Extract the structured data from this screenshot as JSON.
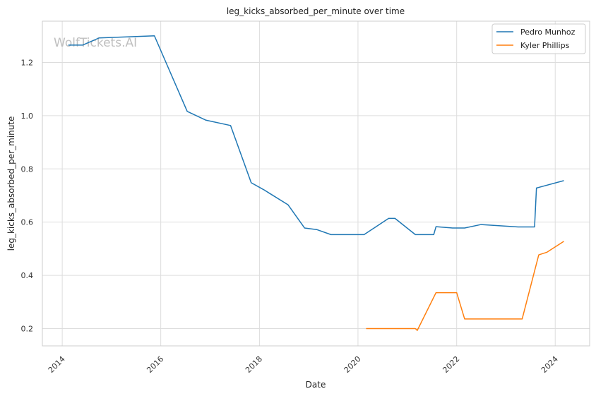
{
  "watermark": "WolfTickets.AI",
  "chart_data": {
    "type": "line",
    "title": "leg_kicks_absorbed_per_minute over time",
    "xlabel": "Date",
    "ylabel": "leg_kicks_absorbed_per_minute",
    "x_ticks": [
      "2014",
      "2016",
      "2018",
      "2020",
      "2022",
      "2024"
    ],
    "y_ticks": [
      "0.2",
      "0.4",
      "0.6",
      "0.8",
      "1.0",
      "1.2"
    ],
    "xlim": [
      "2013-08-07",
      "2024-09-12"
    ],
    "ylim": [
      0.135,
      1.355
    ],
    "grid": true,
    "legend_position": "top-right",
    "series": [
      {
        "name": "Pedro Munhoz",
        "color": "#1f77b4",
        "points": [
          [
            "2014-02-15",
            1.265
          ],
          [
            "2014-06-01",
            1.265
          ],
          [
            "2014-10-01",
            1.292
          ],
          [
            "2015-11-15",
            1.3
          ],
          [
            "2016-07-15",
            1.016
          ],
          [
            "2016-12-01",
            0.983
          ],
          [
            "2017-06-01",
            0.963
          ],
          [
            "2017-11-01",
            0.748
          ],
          [
            "2018-02-01",
            0.722
          ],
          [
            "2018-08-01",
            0.665
          ],
          [
            "2018-12-01",
            0.578
          ],
          [
            "2019-03-01",
            0.572
          ],
          [
            "2019-06-15",
            0.553
          ],
          [
            "2020-02-15",
            0.553
          ],
          [
            "2020-08-15",
            0.614
          ],
          [
            "2020-10-01",
            0.614
          ],
          [
            "2021-03-01",
            0.553
          ],
          [
            "2021-07-15",
            0.553
          ],
          [
            "2021-08-01",
            0.583
          ],
          [
            "2021-12-01",
            0.578
          ],
          [
            "2022-03-01",
            0.578
          ],
          [
            "2022-07-01",
            0.591
          ],
          [
            "2023-04-01",
            0.582
          ],
          [
            "2023-08-01",
            0.582
          ],
          [
            "2023-08-15",
            0.728
          ],
          [
            "2024-03-05",
            0.756
          ]
        ]
      },
      {
        "name": "Kyler Phillips",
        "color": "#ff7f0e",
        "points": [
          [
            "2020-03-01",
            0.2
          ],
          [
            "2021-03-01",
            0.2
          ],
          [
            "2021-03-15",
            0.193
          ],
          [
            "2021-08-01",
            0.335
          ],
          [
            "2022-01-01",
            0.335
          ],
          [
            "2022-03-01",
            0.236
          ],
          [
            "2023-05-01",
            0.236
          ],
          [
            "2023-09-01",
            0.477
          ],
          [
            "2023-11-01",
            0.487
          ],
          [
            "2024-03-05",
            0.528
          ]
        ]
      }
    ]
  }
}
